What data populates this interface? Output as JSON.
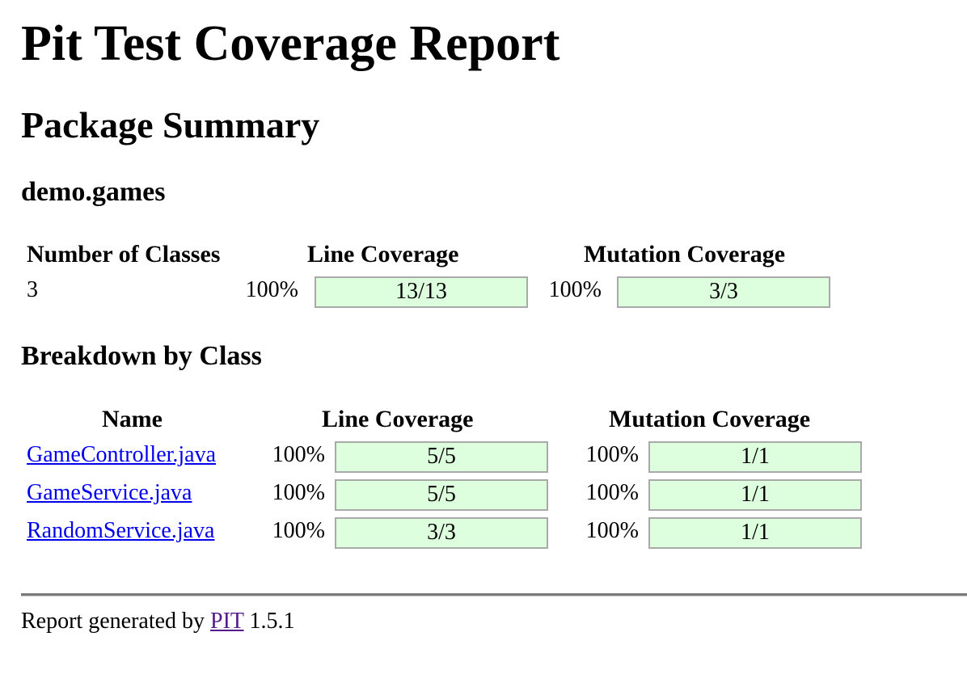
{
  "title": "Pit Test Coverage Report",
  "package_summary_heading": "Package Summary",
  "package_name": "demo.games",
  "summary_table": {
    "headers": {
      "classes": "Number of Classes",
      "line": "Line Coverage",
      "mutation": "Mutation Coverage"
    },
    "number_of_classes": "3",
    "line_pct": "100%",
    "line_ratio": "13/13",
    "line_fraction": 1.0,
    "mutation_pct": "100%",
    "mutation_ratio": "3/3",
    "mutation_fraction": 1.0
  },
  "breakdown_heading": "Breakdown by Class",
  "breakdown_table": {
    "headers": {
      "name": "Name",
      "line": "Line Coverage",
      "mutation": "Mutation Coverage"
    },
    "rows": [
      {
        "name": "GameController.java",
        "line_pct": "100%",
        "line_ratio": "5/5",
        "line_fraction": 1.0,
        "mutation_pct": "100%",
        "mutation_ratio": "1/1",
        "mutation_fraction": 1.0
      },
      {
        "name": "GameService.java",
        "line_pct": "100%",
        "line_ratio": "5/5",
        "line_fraction": 1.0,
        "mutation_pct": "100%",
        "mutation_ratio": "1/1",
        "mutation_fraction": 1.0
      },
      {
        "name": "RandomService.java",
        "line_pct": "100%",
        "line_ratio": "3/3",
        "line_fraction": 1.0,
        "mutation_pct": "100%",
        "mutation_ratio": "1/1",
        "mutation_fraction": 1.0
      }
    ]
  },
  "footer": {
    "prefix": "Report generated by",
    "link_text": "PIT",
    "version": "1.5.1"
  },
  "colors": {
    "coverage_fill": "#ddffdd",
    "coverage_border": "#a9a9a9",
    "link": "#0000ee",
    "visited_link": "#551a8b"
  }
}
